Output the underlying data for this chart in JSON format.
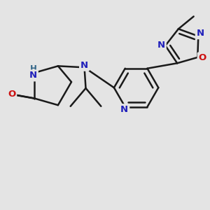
{
  "bg_color": "#e4e4e4",
  "bond_color": "#1a1a1a",
  "bond_width": 1.8,
  "dbo": 0.018,
  "atom_colors": {
    "N": "#2020bb",
    "O": "#cc1111",
    "H": "#336688"
  },
  "font_size": 9.5
}
